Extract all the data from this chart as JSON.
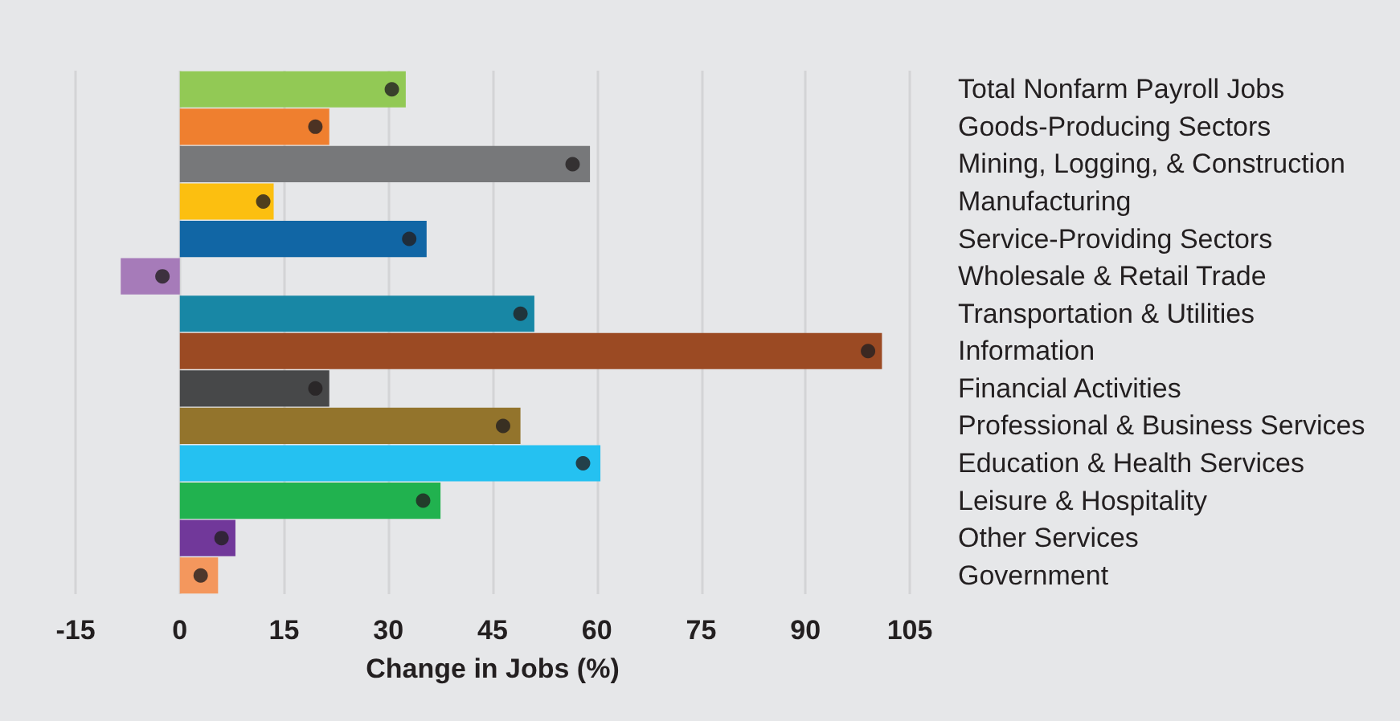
{
  "chart_data": {
    "type": "bar",
    "orientation": "horizontal",
    "xlabel": "Change in Jobs (%)",
    "categories": [
      "Total Nonfarm Payroll Jobs",
      "Goods-Producing Sectors",
      "Mining, Logging, & Construction",
      "Manufacturing",
      "Service-Providing Sectors",
      "Wholesale & Retail Trade",
      "Transportation & Utilities",
      "Information",
      "Financial Activities",
      "Professional & Business Services",
      "Education & Health Services",
      "Leisure & Hospitality",
      "Other Services",
      "Government"
    ],
    "series": [
      {
        "colors": [
          "#92c955",
          "#ef7f2f",
          "#77787a",
          "#fcbf10",
          "#1166a5",
          "#a67bb9",
          "#1887a5",
          "#9b4a23",
          "#474849",
          "#93742c",
          "#25c1f1",
          "#21b24f",
          "#71389a",
          "#f4975d"
        ],
        "values": [
          32.5,
          21.5,
          59,
          13.5,
          35.5,
          -8.5,
          51,
          101,
          21.5,
          49,
          60.5,
          37.5,
          8,
          5.5
        ]
      },
      {
        "type": "scatter",
        "color": "#231f20",
        "marker": "circle",
        "values": [
          30.5,
          19.5,
          56.5,
          12,
          33,
          -2.5,
          49,
          99,
          19.5,
          46.5,
          58,
          35,
          6,
          3
        ]
      }
    ],
    "xlim": [
      -15,
      105
    ],
    "xticks": [
      -15,
      0,
      15,
      30,
      45,
      60,
      75,
      90,
      105
    ],
    "grid": "x"
  }
}
